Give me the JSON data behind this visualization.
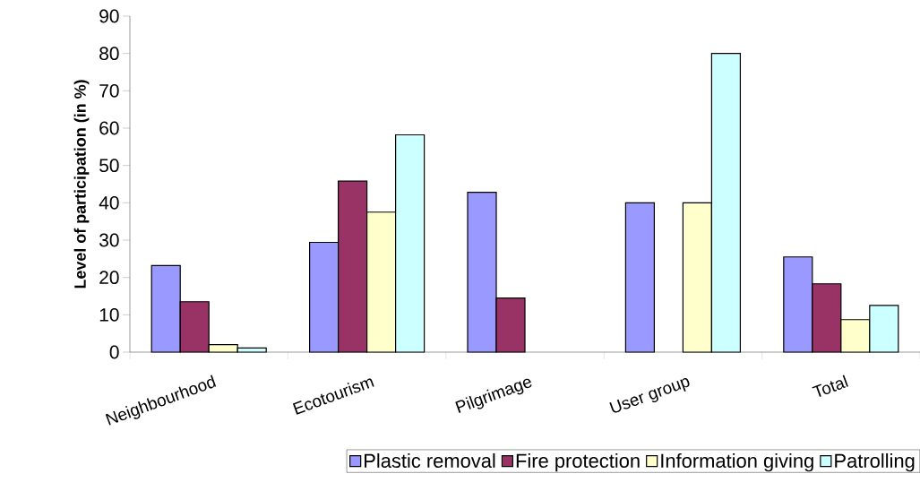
{
  "chart_data": {
    "type": "bar",
    "ylabel": "Level of participation (in %)",
    "categories": [
      "Neighbourhood",
      "Ecotourism",
      "Pilgrimage",
      "User group",
      "Total"
    ],
    "series": [
      {
        "name": "Plastic removal",
        "color": "#9999ff",
        "values": [
          23.2,
          29.4,
          42.8,
          40,
          25.5
        ]
      },
      {
        "name": "Fire protection",
        "color": "#993366",
        "values": [
          13.5,
          45.8,
          14.5,
          null,
          18.3
        ]
      },
      {
        "name": "Information giving",
        "color": "#ffffcc",
        "values": [
          2.0,
          37.5,
          null,
          40,
          8.7
        ]
      },
      {
        "name": "Patrolling",
        "color": "#ccffff",
        "values": [
          1.1,
          58.2,
          null,
          80,
          12.5
        ]
      }
    ],
    "ylim": [
      0,
      90
    ],
    "yticks": [
      0,
      10,
      20,
      30,
      40,
      50,
      60,
      70,
      80,
      90
    ],
    "legend": "bottom"
  }
}
